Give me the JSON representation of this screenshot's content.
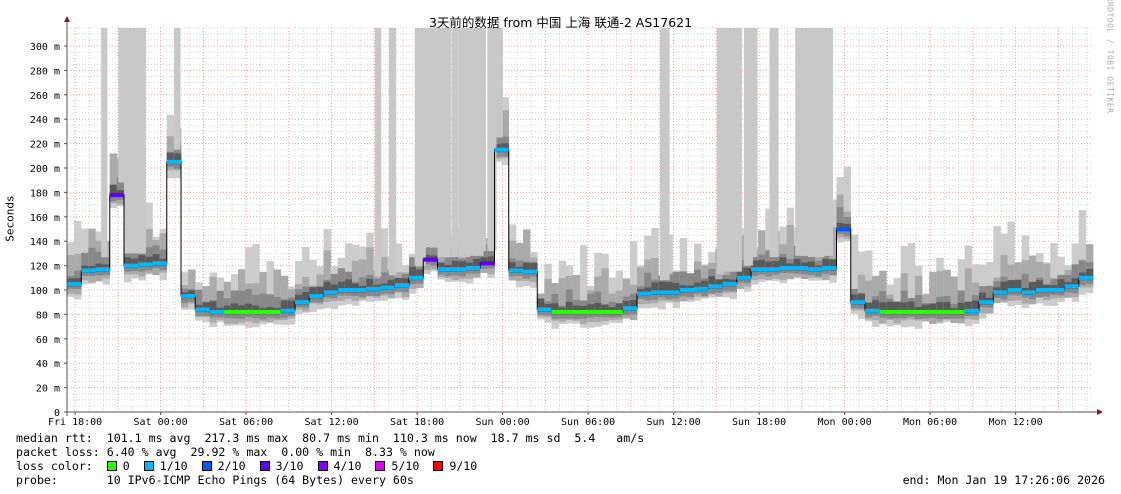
{
  "title": "3天前的数据 from 中国 上海 联通-2 AS17621",
  "watermark": "RRDTOOL / TOBI OETIKER",
  "legend": {
    "median_rtt": "median rtt:  101.1 ms avg  217.3 ms max  80.7 ms min  110.3 ms now  18.7 ms sd  5.4   am/s",
    "packet_loss": "packet loss: 6.40 % avg  29.92 % max  0.00 % min  8.33 % now",
    "loss_color_label": "loss color:",
    "loss_colors": [
      {
        "label": "0",
        "color": "#26ff00"
      },
      {
        "label": "1/10",
        "color": "#00b8ff"
      },
      {
        "label": "2/10",
        "color": "#0059ff"
      },
      {
        "label": "3/10",
        "color": "#5e00ff"
      },
      {
        "label": "4/10",
        "color": "#7e00ff"
      },
      {
        "label": "5/10",
        "color": "#dd00ff"
      },
      {
        "label": "9/10",
        "color": "#ff0000"
      }
    ],
    "probe": "probe:       10 IPv6-ICMP Echo Pings (64 Bytes) every 60s",
    "end": "end: Mon Jan 19 17:26:06 2026"
  },
  "chart_data": {
    "type": "line",
    "title": "3天前的数据 from 中国 上海 联通-2 AS17621",
    "ylabel": "Seconds",
    "ylim": [
      0,
      315
    ],
    "yticks": [
      0,
      20,
      40,
      60,
      80,
      100,
      120,
      140,
      160,
      180,
      200,
      220,
      240,
      260,
      280,
      300
    ],
    "ytick_labels": [
      "0",
      "20 m",
      "40 m",
      "60 m",
      "80 m",
      "100 m",
      "120 m",
      "140 m",
      "160 m",
      "180 m",
      "200 m",
      "220 m",
      "240 m",
      "260 m",
      "280 m",
      "300 m"
    ],
    "xrange_hours": [
      0,
      72
    ],
    "xticks": [
      {
        "hour": 0.57,
        "label": "Fri 18:00"
      },
      {
        "hour": 6.57,
        "label": "Sat 00:00"
      },
      {
        "hour": 12.57,
        "label": "Sat 06:00"
      },
      {
        "hour": 18.57,
        "label": "Sat 12:00"
      },
      {
        "hour": 24.57,
        "label": "Sat 18:00"
      },
      {
        "hour": 30.57,
        "label": "Sun 00:00"
      },
      {
        "hour": 36.57,
        "label": "Sun 06:00"
      },
      {
        "hour": 42.57,
        "label": "Sun 12:00"
      },
      {
        "hour": 48.57,
        "label": "Sun 18:00"
      },
      {
        "hour": 54.57,
        "label": "Mon 00:00"
      },
      {
        "hour": 60.57,
        "label": "Mon 06:00"
      },
      {
        "hour": 66.57,
        "label": "Mon 12:00"
      }
    ],
    "grid": true,
    "median_ms": [
      105,
      116,
      117,
      178,
      120,
      121,
      122,
      205,
      95,
      84,
      82,
      82,
      82,
      82,
      82,
      83,
      90,
      95,
      98,
      100,
      100,
      101,
      102,
      104,
      110,
      125,
      117,
      117,
      118,
      122,
      215,
      116,
      115,
      84,
      82,
      82,
      82,
      82,
      82,
      85,
      97,
      98,
      98,
      100,
      101,
      103,
      105,
      110,
      117,
      117,
      118,
      118,
      117,
      118,
      150,
      90,
      83,
      82,
      82,
      82,
      82,
      82,
      82,
      83,
      90,
      98,
      100,
      98,
      100,
      100,
      103,
      110
    ],
    "loss_level": [
      "1/10",
      "1/10",
      "1/10",
      "3/10",
      "1/10",
      "1/10",
      "1/10",
      "1/10",
      "1/10",
      "1/10",
      "1/10",
      "0",
      "0",
      "0",
      "0",
      "1/10",
      "1/10",
      "1/10",
      "1/10",
      "1/10",
      "1/10",
      "1/10",
      "1/10",
      "1/10",
      "1/10",
      "3/10",
      "1/10",
      "1/10",
      "1/10",
      "3/10",
      "1/10",
      "1/10",
      "1/10",
      "1/10",
      "0",
      "0",
      "0",
      "0",
      "0",
      "1/10",
      "1/10",
      "1/10",
      "1/10",
      "1/10",
      "1/10",
      "1/10",
      "1/10",
      "1/10",
      "1/10",
      "1/10",
      "1/10",
      "1/10",
      "1/10",
      "1/10",
      "2/10",
      "1/10",
      "1/10",
      "0",
      "0",
      "0",
      "0",
      "0",
      "0",
      "1/10",
      "1/10",
      "1/10",
      "1/10",
      "1/10",
      "1/10",
      "1/10",
      "1/10",
      "1/10"
    ],
    "smoke_to_top_hours": [
      2.4,
      3.6,
      4.0,
      4.4,
      4.7,
      7.5,
      21.6,
      22.6,
      24.4,
      25.0,
      25.5,
      26.0,
      26.5,
      27.0,
      27.5,
      28.0,
      28.5,
      29.0,
      29.5,
      30.0,
      41.6,
      45.6,
      46.0,
      46.5,
      47.5,
      48.0,
      49.3,
      51.1,
      51.5,
      52.0,
      52.5,
      53.0
    ]
  }
}
